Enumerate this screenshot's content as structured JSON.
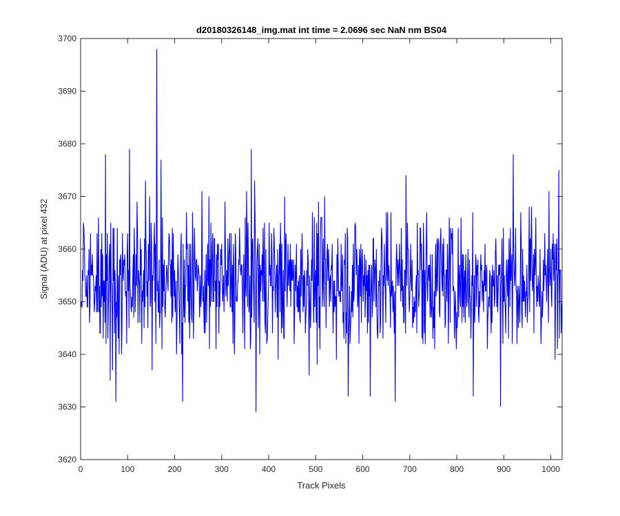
{
  "chart_data": {
    "type": "line",
    "title": "d20180326148_img.mat int time = 2.0696 sec  NaN nm BS04",
    "xlabel": "Track Pixels",
    "ylabel": "Signal (ADU) at pixel 432",
    "xlim": [
      0,
      1024
    ],
    "ylim": [
      3620,
      3700
    ],
    "xticks": [
      0,
      100,
      200,
      300,
      400,
      500,
      600,
      700,
      800,
      900,
      1000
    ],
    "yticks": [
      3620,
      3630,
      3640,
      3650,
      3660,
      3670,
      3680,
      3690,
      3700
    ],
    "grid": false,
    "legend": "none",
    "series": [
      {
        "color": "#0000ff",
        "noise": {
          "n_points": 1024,
          "mean": 3654,
          "std": 6.5
        },
        "highlight_points": [
          {
            "x": 53,
            "y": 3678
          },
          {
            "x": 63,
            "y": 3635
          },
          {
            "x": 75,
            "y": 3631
          },
          {
            "x": 104,
            "y": 3679
          },
          {
            "x": 138,
            "y": 3673
          },
          {
            "x": 162,
            "y": 3698
          },
          {
            "x": 171,
            "y": 3677
          },
          {
            "x": 217,
            "y": 3631
          },
          {
            "x": 363,
            "y": 3679
          },
          {
            "x": 370,
            "y": 3673
          },
          {
            "x": 373,
            "y": 3629
          },
          {
            "x": 569,
            "y": 3632
          },
          {
            "x": 616,
            "y": 3632
          },
          {
            "x": 669,
            "y": 3631
          },
          {
            "x": 692,
            "y": 3674
          },
          {
            "x": 835,
            "y": 3632
          },
          {
            "x": 893,
            "y": 3630
          },
          {
            "x": 920,
            "y": 3678
          },
          {
            "x": 1017,
            "y": 3675
          }
        ]
      }
    ]
  }
}
